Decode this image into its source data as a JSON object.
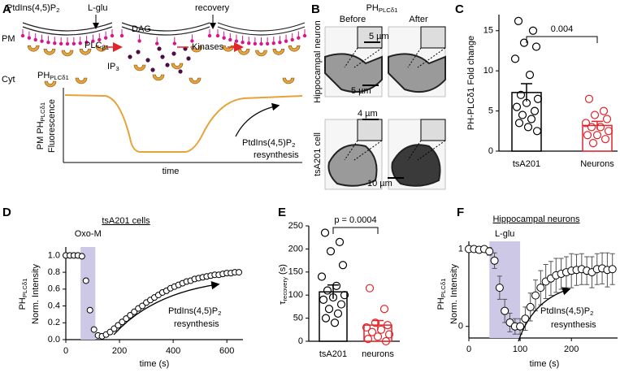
{
  "panels": {
    "A": {
      "letter": "A",
      "lipid": [
        "PtdIns(4,5)P",
        {
          "sub": "2"
        }
      ],
      "l_glu": "L-glu",
      "pm": "PM",
      "cyt": "Cyt",
      "dag": "DAG",
      "ip3": [
        "IP",
        {
          "sub": "3"
        }
      ],
      "plc": [
        "PLC",
        {
          "sub": "β1"
        }
      ],
      "kinases": "Kinases",
      "recovery": "recovery",
      "ph": [
        "PH",
        {
          "sub": "PLCδ1"
        }
      ],
      "ylabel": [
        [
          "PM PH",
          {
            "sub": "PLCδ1"
          }
        ],
        [
          "Fluorescence"
        ]
      ],
      "xlabel": "time",
      "annotation": [
        [
          "PtdIns(4,5)P",
          {
            "sub": "2"
          }
        ],
        [
          "resynthesis"
        ]
      ]
    },
    "B": {
      "letter": "B",
      "title": [
        "PH",
        {
          "sub": "PLCδ1"
        }
      ],
      "before": "Before",
      "after": "After",
      "row1": "Hippocampal neuron",
      "row2": "tsA201 cell",
      "scale": [
        "5 µm",
        "5 µm",
        "4 µm",
        "10 µm"
      ]
    }
  },
  "chart_data": [
    {
      "panel": "C",
      "type": "bar",
      "ylabel": "PH-PLCδ1 Fold change",
      "categories": [
        "tsA201",
        "Neurons"
      ],
      "colors": [
        "#000000",
        "#e3242b"
      ],
      "values": [
        7.3,
        3.2
      ],
      "errors": [
        1.1,
        0.5
      ],
      "points": [
        [
          16.2,
          15,
          13.5,
          13,
          11.5,
          9.5,
          7,
          6.5,
          6,
          5.5,
          5,
          4.5,
          4,
          3.5,
          3,
          2.5
        ],
        [
          6.5,
          5,
          4.5,
          4,
          3.5,
          3,
          3,
          2.5,
          2,
          2,
          1.5,
          1
        ]
      ],
      "ylim": [
        0,
        17
      ],
      "yticks": [
        0,
        5,
        10,
        15
      ],
      "significance": "0.004",
      "significance_color": "#e3242b"
    },
    {
      "panel": "D",
      "type": "scatter",
      "title": "tsA201 cells",
      "ylabel": [
        [
          "PH",
          {
            "sub": "PLCδ1"
          }
        ],
        [
          "Norm. Intensity"
        ]
      ],
      "xlabel": "time (s)",
      "x": [
        0,
        15,
        30,
        45,
        60,
        75,
        90,
        105,
        120,
        135,
        150,
        165,
        180,
        195,
        210,
        225,
        240,
        255,
        270,
        285,
        300,
        315,
        330,
        345,
        360,
        375,
        390,
        405,
        420,
        435,
        450,
        465,
        480,
        495,
        510,
        525,
        540,
        555,
        570,
        585,
        600,
        615,
        630,
        645
      ],
      "series": [
        {
          "color": "#000000",
          "values": [
            1.0,
            1.0,
            1.0,
            1.0,
            0.99,
            0.7,
            0.35,
            0.12,
            0.05,
            0.04,
            0.06,
            0.09,
            0.13,
            0.17,
            0.21,
            0.25,
            0.29,
            0.33,
            0.37,
            0.4,
            0.44,
            0.47,
            0.5,
            0.53,
            0.56,
            0.58,
            0.61,
            0.63,
            0.65,
            0.67,
            0.69,
            0.7,
            0.72,
            0.73,
            0.74,
            0.75,
            0.76,
            0.77,
            0.77,
            0.78,
            0.79,
            0.79,
            0.8,
            0.8
          ]
        }
      ],
      "xlim": [
        0,
        660
      ],
      "xticks": [
        0,
        200,
        400,
        600
      ],
      "ylim": [
        0,
        1.1
      ],
      "yticks": [
        {
          "value": 0,
          "label": "0.0"
        },
        0.2,
        0.4,
        0.6,
        0.8,
        {
          "value": 1,
          "label": "1.0"
        }
      ],
      "shade": {
        "label": "Oxo-M",
        "x": [
          55,
          110
        ],
        "color": "#cdc8e6"
      },
      "annotation": [
        [
          "PtdIns(4,5)P",
          {
            "sub": "2"
          }
        ],
        [
          "resynthesis"
        ]
      ]
    },
    {
      "panel": "E",
      "type": "bar",
      "ylabel": [
        [
          "τ",
          {
            "sub": "recovery"
          },
          " (s)"
        ]
      ],
      "categories": [
        "tsA201",
        "neurons"
      ],
      "colors": [
        "#000000",
        "#e3242b"
      ],
      "values": [
        107,
        35
      ],
      "errors": [
        15,
        10
      ],
      "points": [
        [
          235,
          215,
          195,
          165,
          140,
          120,
          110,
          100,
          95,
          90,
          80,
          70,
          60,
          50,
          40
        ],
        [
          115,
          70,
          40,
          35,
          30,
          25,
          20,
          15,
          10,
          5,
          0
        ]
      ],
      "ylim": [
        0,
        250
      ],
      "yticks": [
        0,
        50,
        100,
        150,
        200,
        250
      ],
      "significance": "p = 0.0004",
      "significance_color": "#e3242b"
    },
    {
      "panel": "F",
      "type": "scatter",
      "title": "Hippocampal neurons",
      "ylabel": [
        [
          "PH",
          {
            "sub": "PLCδ1"
          }
        ],
        [
          "Norm. Intensity"
        ]
      ],
      "xlabel": "time (s)",
      "x": [
        0,
        10,
        20,
        30,
        40,
        50,
        60,
        70,
        80,
        90,
        100,
        110,
        120,
        130,
        140,
        150,
        160,
        170,
        180,
        190,
        200,
        210,
        220,
        230,
        240,
        250,
        260,
        270,
        280
      ],
      "series": [
        {
          "color": "#000000",
          "values": [
            1.0,
            1.0,
            0.99,
            1.0,
            0.97,
            0.85,
            0.5,
            0.2,
            0.05,
            0.0,
            0.0,
            0.1,
            0.25,
            0.4,
            0.5,
            0.58,
            0.62,
            0.66,
            0.68,
            0.7,
            0.72,
            0.73,
            0.74,
            0.72,
            0.7,
            0.74,
            0.75,
            0.73,
            0.74
          ],
          "errors": [
            0.02,
            0.02,
            0.03,
            0.03,
            0.05,
            0.1,
            0.15,
            0.15,
            0.12,
            0.1,
            0.1,
            0.15,
            0.18,
            0.2,
            0.22,
            0.22,
            0.22,
            0.22,
            0.2,
            0.2,
            0.22,
            0.2,
            0.2,
            0.18,
            0.2,
            0.2,
            0.2,
            0.22,
            0.2
          ]
        }
      ],
      "xlim": [
        0,
        290
      ],
      "xticks": [
        0,
        100,
        200
      ],
      "ylim": [
        -0.15,
        1.1
      ],
      "yticks": [
        0,
        1
      ],
      "shade": {
        "label": "L-glu",
        "x": [
          40,
          100
        ],
        "color": "#cdc8e6"
      },
      "annotation": [
        [
          "PtdIns(4,5)P",
          {
            "sub": "2"
          }
        ],
        [
          "resynthesis"
        ]
      ]
    }
  ]
}
